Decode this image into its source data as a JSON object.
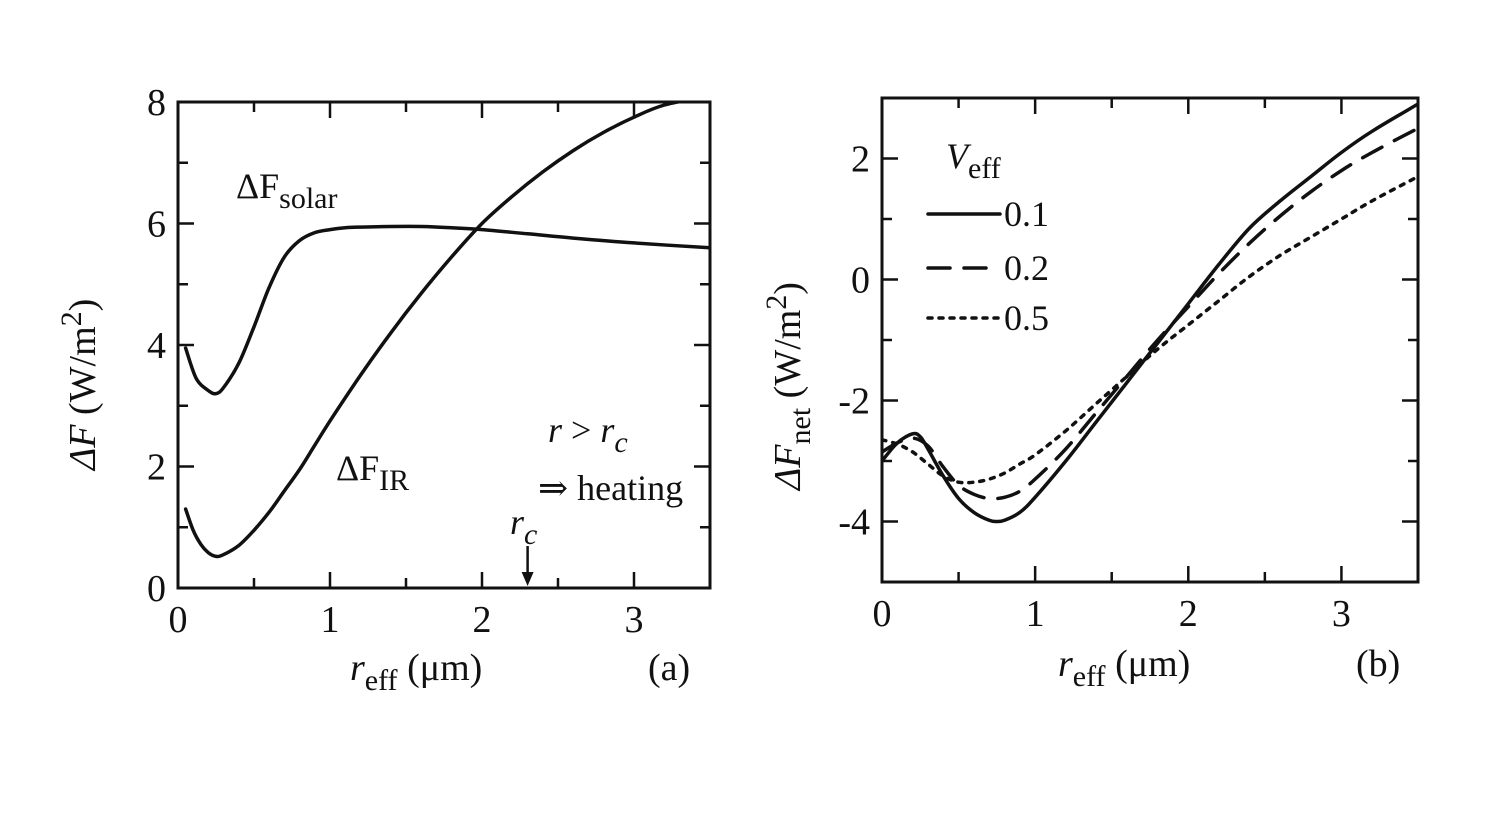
{
  "chart_data": [
    {
      "type": "line",
      "panel_label": "(a)",
      "ylabel": {
        "main": "ΔF",
        "unit": "(W/m",
        "sup": "2",
        "close": ")"
      },
      "xlabel": {
        "main": "r",
        "sub": "eff",
        "unit": "(μm)"
      },
      "xlim": [
        0,
        3.5
      ],
      "ylim": [
        0,
        8
      ],
      "xticks": [
        "0",
        "1",
        "2",
        "3"
      ],
      "yticks": [
        "0",
        "2",
        "4",
        "6",
        "8"
      ],
      "series": [
        {
          "name": "ΔF solar",
          "label": {
            "main": "ΔF",
            "sub": "solar"
          },
          "style": "solid",
          "x": [
            0.05,
            0.12,
            0.2,
            0.25,
            0.3,
            0.4,
            0.5,
            0.6,
            0.7,
            0.8,
            0.9,
            1.0,
            1.1,
            1.2,
            1.4,
            1.6,
            1.8,
            2.0,
            2.3,
            2.6,
            3.0,
            3.5
          ],
          "y": [
            3.95,
            3.45,
            3.25,
            3.2,
            3.3,
            3.7,
            4.3,
            4.95,
            5.45,
            5.72,
            5.85,
            5.9,
            5.93,
            5.94,
            5.95,
            5.95,
            5.93,
            5.9,
            5.83,
            5.76,
            5.68,
            5.6
          ]
        },
        {
          "name": "ΔF IR",
          "label": {
            "main": "ΔF",
            "sub": "IR"
          },
          "style": "solid",
          "x": [
            0.05,
            0.1,
            0.15,
            0.2,
            0.25,
            0.3,
            0.4,
            0.5,
            0.6,
            0.7,
            0.8,
            0.9,
            1.0,
            1.2,
            1.4,
            1.6,
            1.8,
            2.0,
            2.2,
            2.4,
            2.6,
            2.8,
            3.0,
            3.2,
            3.5
          ],
          "y": [
            1.3,
            0.95,
            0.72,
            0.58,
            0.52,
            0.55,
            0.7,
            0.95,
            1.25,
            1.6,
            1.95,
            2.35,
            2.75,
            3.5,
            4.2,
            4.85,
            5.45,
            6.0,
            6.45,
            6.85,
            7.2,
            7.5,
            7.75,
            7.95,
            8.1
          ]
        }
      ],
      "annotations": {
        "condition": {
          "r": "r",
          "gt": " > ",
          "rc": "r",
          "sub": "c"
        },
        "result": "⇒ heating",
        "rc_label": {
          "main": "r",
          "sub": "c"
        },
        "rc_x": 2.3
      }
    },
    {
      "type": "line",
      "panel_label": "(b)",
      "ylabel": {
        "main": "ΔF",
        "sub": "net",
        "unit": "(W/m",
        "sup": "2",
        "close": ")"
      },
      "xlabel": {
        "main": "r",
        "sub": "eff",
        "unit": "(μm)"
      },
      "xlim": [
        0,
        3.5
      ],
      "ylim": [
        -5,
        3
      ],
      "xticks": [
        "0",
        "1",
        "2",
        "3"
      ],
      "yticks": [
        "-4",
        "-2",
        "0",
        "2"
      ],
      "legend": {
        "title_main": "V",
        "title_sub": "eff",
        "placement": "top-left"
      },
      "series": [
        {
          "name": "0.1",
          "style": "solid",
          "x": [
            0.0,
            0.1,
            0.2,
            0.25,
            0.3,
            0.4,
            0.5,
            0.6,
            0.7,
            0.75,
            0.8,
            0.9,
            1.0,
            1.2,
            1.4,
            1.6,
            1.8,
            2.0,
            2.2,
            2.4,
            2.6,
            2.8,
            3.0,
            3.2,
            3.5
          ],
          "y": [
            -3.0,
            -2.7,
            -2.55,
            -2.6,
            -2.8,
            -3.25,
            -3.62,
            -3.85,
            -3.98,
            -4.0,
            -3.98,
            -3.85,
            -3.6,
            -3.0,
            -2.35,
            -1.7,
            -1.05,
            -0.4,
            0.25,
            0.85,
            1.3,
            1.7,
            2.1,
            2.45,
            2.9
          ]
        },
        {
          "name": "0.2",
          "style": "dashed",
          "x": [
            0.0,
            0.1,
            0.2,
            0.3,
            0.4,
            0.5,
            0.6,
            0.7,
            0.8,
            0.9,
            1.0,
            1.2,
            1.4,
            1.6,
            1.8,
            2.0,
            2.2,
            2.4,
            2.6,
            2.8,
            3.0,
            3.2,
            3.5
          ],
          "y": [
            -2.85,
            -2.7,
            -2.62,
            -2.75,
            -3.1,
            -3.4,
            -3.55,
            -3.62,
            -3.6,
            -3.5,
            -3.3,
            -2.8,
            -2.2,
            -1.6,
            -1.0,
            -0.45,
            0.1,
            0.6,
            1.05,
            1.45,
            1.8,
            2.1,
            2.5
          ]
        },
        {
          "name": "0.5",
          "style": "dotted",
          "x": [
            0.0,
            0.1,
            0.2,
            0.3,
            0.4,
            0.5,
            0.6,
            0.7,
            0.8,
            0.9,
            1.0,
            1.2,
            1.4,
            1.6,
            1.8,
            2.0,
            2.2,
            2.4,
            2.6,
            2.8,
            3.0,
            3.2,
            3.5
          ],
          "y": [
            -2.65,
            -2.72,
            -2.85,
            -3.05,
            -3.25,
            -3.35,
            -3.35,
            -3.3,
            -3.2,
            -3.05,
            -2.9,
            -2.5,
            -2.05,
            -1.6,
            -1.15,
            -0.75,
            -0.35,
            0.05,
            0.4,
            0.7,
            1.0,
            1.3,
            1.7
          ]
        }
      ]
    }
  ]
}
